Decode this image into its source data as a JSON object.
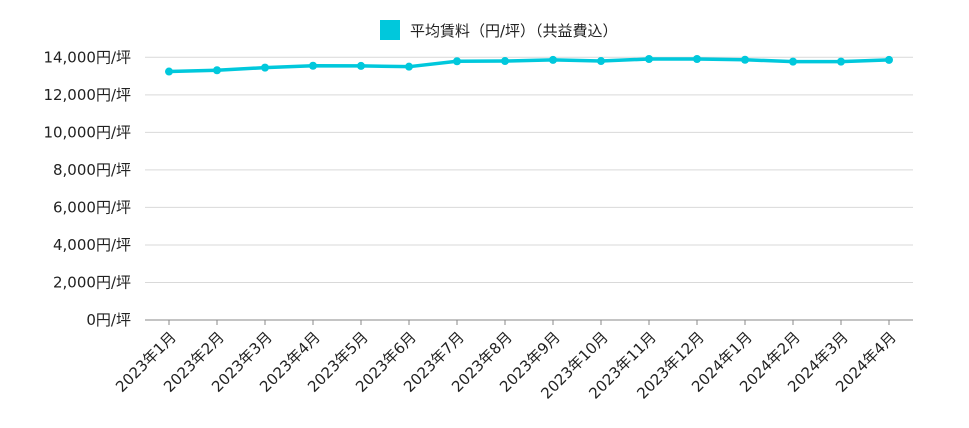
{
  "chart_data": {
    "type": "line",
    "title": "",
    "legend": {
      "label": "平均賃料（円/坪）（共益費込）",
      "placement": "top"
    },
    "categories": [
      "2023年1月",
      "2023年2月",
      "2023年3月",
      "2023年4月",
      "2023年5月",
      "2023年6月",
      "2023年7月",
      "2023年8月",
      "2023年9月",
      "2023年10月",
      "2023年11月",
      "2023年12月",
      "2024年1月",
      "2024年2月",
      "2024年3月",
      "2024年4月"
    ],
    "series": [
      {
        "name": "平均賃料（円/坪）（共益費込）",
        "values": [
          13240,
          13310,
          13450,
          13550,
          13540,
          13500,
          13790,
          13800,
          13860,
          13800,
          13910,
          13910,
          13870,
          13770,
          13770,
          13860
        ],
        "color": "#00C8DC"
      }
    ],
    "yticks": [
      "0円/坪",
      "2,000円/坪",
      "4,000円/坪",
      "6,000円/坪",
      "8,000円/坪",
      "10,000円/坪",
      "12,000円/坪",
      "14,000円/坪"
    ],
    "ylim": [
      0,
      14000
    ],
    "grid": true,
    "xlabel": "",
    "ylabel": ""
  }
}
